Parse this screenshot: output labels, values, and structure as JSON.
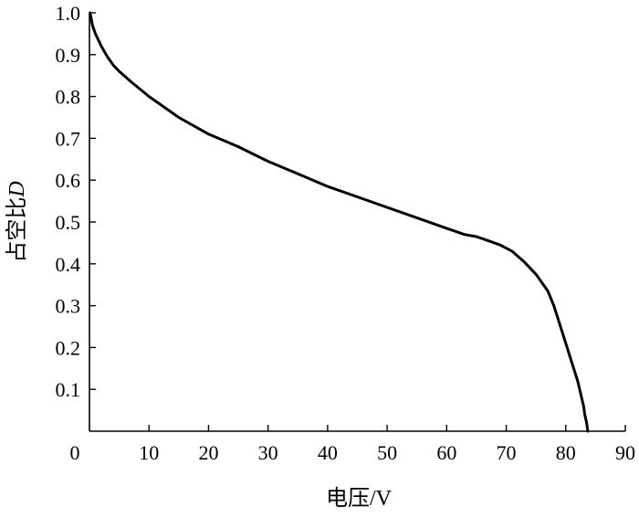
{
  "chart_data": {
    "type": "line",
    "title": "",
    "xlabel": "电压/V",
    "ylabel_main": "占空比",
    "ylabel_symbol": "D",
    "xlim": [
      0,
      90
    ],
    "ylim": [
      0,
      1.0
    ],
    "x_ticks": [
      0,
      10,
      20,
      30,
      40,
      50,
      60,
      70,
      80,
      90
    ],
    "x_tick_labels": [
      "0",
      "10",
      "20",
      "30",
      "40",
      "50",
      "60",
      "70",
      "80",
      "90"
    ],
    "y_ticks": [
      0.1,
      0.2,
      0.3,
      0.4,
      0.5,
      0.6,
      0.7,
      0.8,
      0.9,
      1.0
    ],
    "y_tick_labels": [
      "0.1",
      "0.2",
      "0.3",
      "0.4",
      "0.5",
      "0.6",
      "0.7",
      "0.8",
      "0.9",
      "1.0"
    ],
    "grid": false,
    "legend": "none",
    "line_color": "#000000",
    "series": [
      {
        "x": [
          0.1,
          0.5,
          1,
          2,
          3,
          4,
          5,
          7,
          10,
          15,
          20,
          25,
          30,
          35,
          40,
          45,
          50,
          55,
          60,
          63,
          65,
          67,
          69,
          71,
          73,
          75,
          77,
          78,
          79,
          80,
          81,
          82,
          82.5,
          83,
          83.2,
          83.5,
          83.7
        ],
        "y": [
          1.0,
          0.97,
          0.95,
          0.92,
          0.895,
          0.875,
          0.86,
          0.835,
          0.8,
          0.75,
          0.71,
          0.68,
          0.645,
          0.615,
          0.585,
          0.56,
          0.535,
          0.51,
          0.485,
          0.47,
          0.465,
          0.455,
          0.445,
          0.43,
          0.405,
          0.375,
          0.335,
          0.3,
          0.255,
          0.21,
          0.165,
          0.12,
          0.09,
          0.06,
          0.04,
          0.02,
          0.0
        ]
      }
    ]
  }
}
